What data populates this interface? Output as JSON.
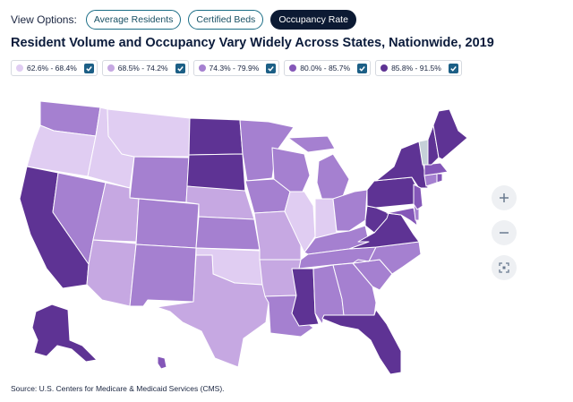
{
  "view_options": {
    "label": "View Options:",
    "buttons": [
      {
        "label": "Average Residents",
        "active": false
      },
      {
        "label": "Certified Beds",
        "active": false
      },
      {
        "label": "Occupancy Rate",
        "active": true
      }
    ]
  },
  "title": "Resident Volume and Occupancy Vary Widely Across States, Nationwide, 2019",
  "legend": [
    {
      "label": "62.6% - 68.4%",
      "color": "#e0cdf2",
      "checked": true
    },
    {
      "label": "68.5% - 74.2%",
      "color": "#c6a8e2",
      "checked": true
    },
    {
      "label": "74.3% - 79.9%",
      "color": "#a580d0",
      "checked": true
    },
    {
      "label": "80.0% - 85.7%",
      "color": "#8457b8",
      "checked": true
    },
    {
      "label": "85.8% - 91.5%",
      "color": "#5e3394",
      "checked": true
    }
  ],
  "no_data_color": "#c5d0d8",
  "map_colors": {
    "c1": "#e0cdf2",
    "c2": "#c6a8e2",
    "c3": "#a580d0",
    "c4": "#8457b8",
    "c5": "#5e3394"
  },
  "zoom_controls": {
    "zoom_in": "plus-icon",
    "zoom_out": "minus-icon",
    "reset": "fullscreen-icon"
  },
  "source": "Source: U.S. Centers for Medicare & Medicaid Services (CMS)."
}
